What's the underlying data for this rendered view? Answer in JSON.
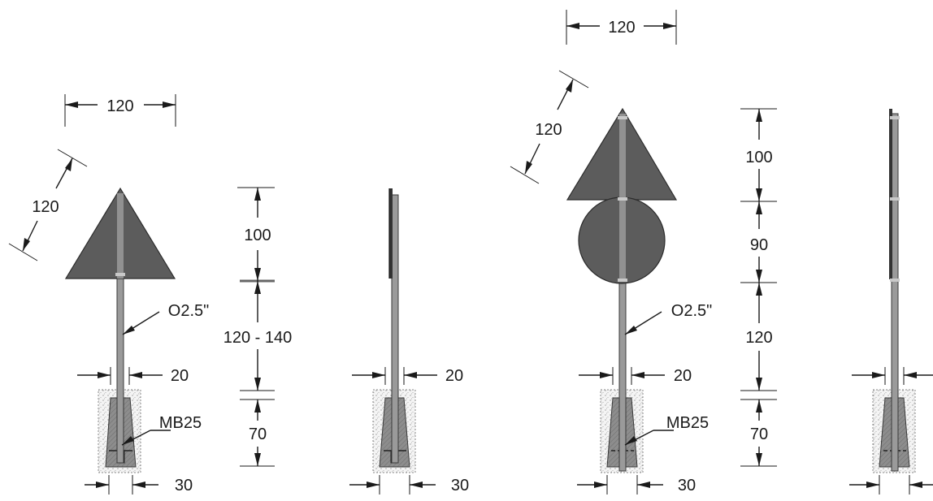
{
  "labels": {
    "width_a": "120",
    "side_a": "120",
    "sign_height_a": "100",
    "post_height_a": "120 - 140",
    "pole_dia_a": "O2.5\"",
    "pole_gap_a": "20",
    "found_a": "MB25",
    "found_depth_a": "70",
    "found_width_a": "30",
    "side_gap_a": "20",
    "side_found_width_a": "30",
    "width_b": "120",
    "side_b": "120",
    "sign_height_b": "100",
    "circle_height_b": "90",
    "post_height_b": "120",
    "pole_dia_b": "O2.5\"",
    "pole_gap_b": "20",
    "found_b": "MB25",
    "found_depth_b": "70",
    "found_width_b": "30"
  },
  "colors": {
    "sign_fill": "#5c5c5c",
    "pole_fill": "#9a9a9a",
    "footing_fill": "#8d8d8d",
    "concrete_fill": "#f3f3f3"
  }
}
